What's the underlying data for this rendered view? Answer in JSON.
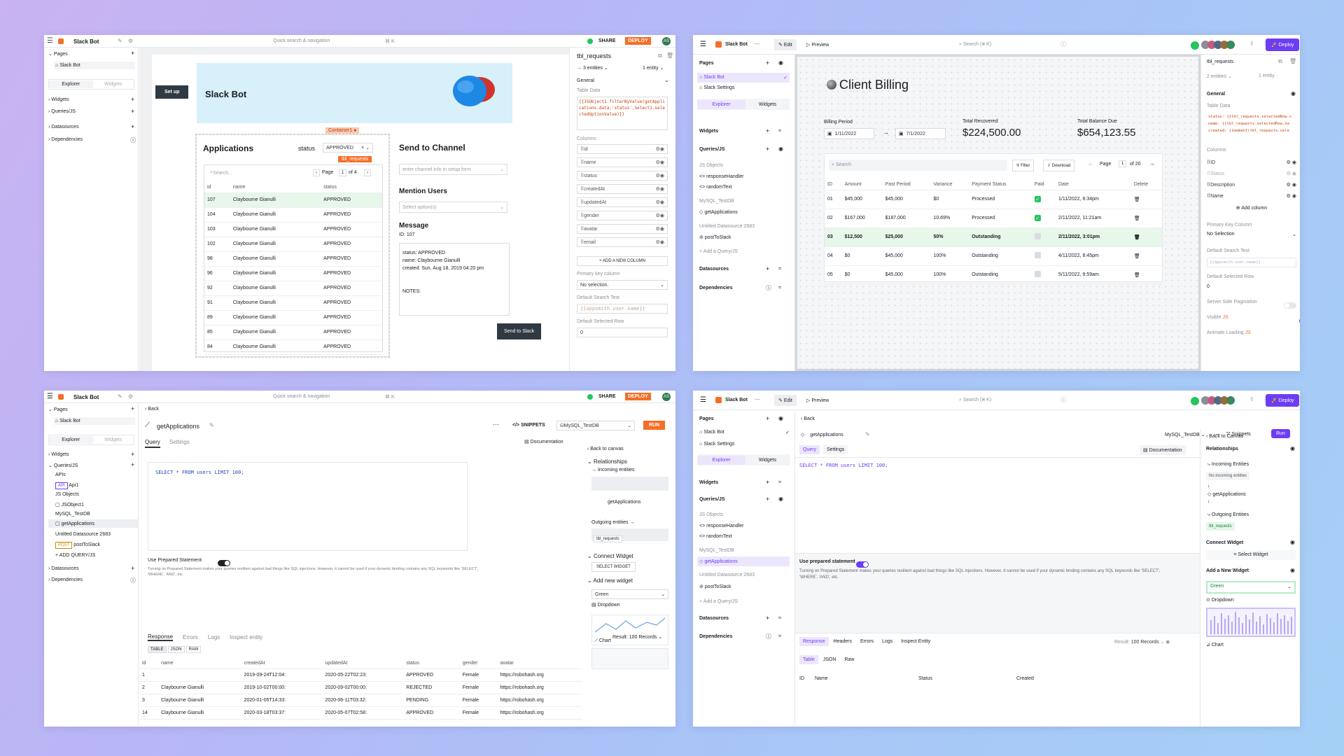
{
  "p1": {
    "app_name": "Slack Bot",
    "search_placeholder": "Quick search & navigation",
    "search_kbd": "⌘ K",
    "share": "SHARE",
    "deploy": "DEPLOY",
    "avatar": "AS",
    "side": {
      "pages": "Pages",
      "page_item": "Slack Bot",
      "tab_explorer": "Explorer",
      "tab_widgets": "Widgets",
      "widgets": "Widgets",
      "queries": "Queries/JS",
      "datasources": "Datasources",
      "dependencies": "Dependencies"
    },
    "canvas": {
      "setup_btn": "Set up",
      "hero_title": "Slack Bot",
      "container_tag": "Container1",
      "table_tag": "tbl_requests",
      "apps_title": "Applications",
      "status_label": "status",
      "status_value": "APPROVED",
      "search_placeholder": "Search...",
      "page_label": "Page",
      "page_num": "1",
      "page_of": "of 4",
      "cols": [
        "id",
        "name",
        "status"
      ],
      "rows": [
        [
          "107",
          "Claybourne Gianulli",
          "APPROVED"
        ],
        [
          "104",
          "Claybourne Gianulli",
          "APPROVED"
        ],
        [
          "103",
          "Claybourne Gianulli",
          "APPROVED"
        ],
        [
          "102",
          "Claybourne Gianulli",
          "APPROVED"
        ],
        [
          "98",
          "Claybourne Gianulli",
          "APPROVED"
        ],
        [
          "96",
          "Claybourne Gianulli",
          "APPROVED"
        ],
        [
          "92",
          "Claybourne Gianulli",
          "APPROVED"
        ],
        [
          "91",
          "Claybourne Gianulli",
          "APPROVED"
        ],
        [
          "89",
          "Claybourne Gianulli",
          "APPROVED"
        ],
        [
          "85",
          "Claybourne Gianulli",
          "APPROVED"
        ],
        [
          "84",
          "Claybourne Gianulli",
          "APPROVED"
        ]
      ],
      "send_title": "Send to Channel",
      "channel_placeholder": "enter channel info in setup form",
      "mention_title": "Mention Users",
      "mention_placeholder": "Select option(s)",
      "message_title": "Message",
      "message_id": "ID: 107",
      "msg_l1": "status: APPROVED",
      "msg_l2": "name: Claybourne Gianulli",
      "msg_l3": "created: Sun, Aug 18, 2019 04:20 pm",
      "msg_l4": "NOTES:",
      "send_btn": "Send to Slack"
    },
    "props": {
      "title": "tbl_requests",
      "entities": "→ 3 entities ⌄",
      "entity": "1 entity ⌄",
      "general": "General",
      "table_data": "Table Data",
      "code": "{{JSObject1.filterByValue(getApplications.data,'status',Select1.selectedOptionValue)}}",
      "columns": "Columns",
      "cols": [
        "id",
        "name",
        "status",
        "createdAt",
        "updatedAt",
        "gender",
        "avatar",
        "email"
      ],
      "add_col": "+ ADD A NEW COLUMN",
      "pk": "Primary key column",
      "pk_val": "No selection.",
      "dst": "Default Search Text",
      "dst_val": "{{appsmith.user.name}}",
      "dsr": "Default Selected Row",
      "dsr_val": "0"
    }
  },
  "p2": {
    "app_name": "Slack Bot",
    "edit": "Edit",
    "preview": "Preview",
    "search": "Search (⌘ K)",
    "deploy": "Deploy",
    "side": {
      "pages": "Pages",
      "page1": "Slack Bot",
      "page2": "Slack Settings",
      "tab_explorer": "Explorer",
      "tab_widgets": "Widgets",
      "widgets": "Widgets",
      "queries": "Queries/JS",
      "js_objects": "JS Objects",
      "js1": "responseHandler",
      "js2": "randomText",
      "db1": "MySQL_TestDB",
      "q1": "getApplications",
      "db2": "Untitled Datasource 2683",
      "q2": "postToSlack",
      "add_q": "Add a Query/JS",
      "datasources": "Datasources",
      "dependencies": "Dependencies"
    },
    "billing": {
      "title": "Client Billing",
      "period_label": "Billing Period",
      "date_from": "1/11/2022",
      "date_to": "7/1/2022",
      "recovered_label": "Total Recovered",
      "recovered": "$224,500.00",
      "due_label": "Total Balance Due",
      "due": "$654,123.55",
      "search": "Search",
      "filter": "Filter",
      "download": "Download",
      "page": "Page",
      "page_num": "1",
      "page_of": "of 20",
      "cols": [
        "ID",
        "Amount",
        "Past Period",
        "Variance",
        "Payment Status",
        "Paid",
        "Date",
        "Delete"
      ],
      "rows": [
        [
          "01",
          "$45,000",
          "$45,000",
          "$0",
          "Processed",
          "yes",
          "1/11/2022, 6:34pm"
        ],
        [
          "02",
          "$167,000",
          "$187,000",
          "10.69%",
          "Processed",
          "yes",
          "2/11/2022, 11:21am"
        ],
        [
          "03",
          "$12,500",
          "$25,000",
          "50%",
          "Outstanding",
          "no",
          "2/11/2022, 3:01pm"
        ],
        [
          "04",
          "$0",
          "$45,000",
          "100%",
          "Outstanding",
          "no",
          "4/11/2022, 8:45pm"
        ],
        [
          "05",
          "$0",
          "$45,000",
          "100%",
          "Outstanding",
          "no",
          "5/11/2022, 9:59am"
        ]
      ]
    },
    "props": {
      "title": "tbl_requests",
      "entities": "2 entities ⌄",
      "entity": "1 entity",
      "general": "General",
      "table_data": "Table Data",
      "code1": "status: {{tbl_requests.selectedRow.s",
      "code2": "name: {{tbl_requests.selectedRow.na",
      "code3": "created: {{moment(tbl_requests.sele",
      "columns": "Columns",
      "cols": [
        "ID",
        "Status",
        "Description",
        "Name"
      ],
      "add_col": "Add column",
      "pk": "Primary Key Column",
      "pk_val": "No Selection",
      "dst": "Default Search Text",
      "dst_val": "{{appsmith.user.name}}",
      "dsr": "Default Selected Row",
      "dsr_val": "0",
      "ssp": "Server Side Pagination",
      "visible": "Visible",
      "js": "JS",
      "animate": "Animate Loading"
    }
  },
  "p3": {
    "app_name": "Slack Bot",
    "search_placeholder": "Quick search & navigation",
    "search_kbd": "⌘ K",
    "share": "SHARE",
    "deploy": "DEPLOY",
    "avatar": "AS",
    "side": {
      "pages": "Pages",
      "page_item": "Slack Bot",
      "tab_explorer": "Explorer",
      "tab_widgets": "Widgets",
      "widgets": "Widgets",
      "queries": "Queries/JS",
      "apis": "APIs",
      "api1_tag": "API",
      "api1": "Api1",
      "js_objects": "JS Objects",
      "js1": "JSObject1",
      "db1": "MySQL_TestDB",
      "q1": "getApplications",
      "db2": "Untitled Datasource 2683",
      "q2_tag": "POST",
      "q2": "postToSlack",
      "add_q": "+ ADD QUERY/JS",
      "datasources": "Datasources",
      "dependencies": "Dependencies"
    },
    "editor": {
      "back": "Back",
      "query_name": "getApplications",
      "snippets": "SNIPPETS",
      "datasource": "MySQL_TestDB",
      "run": "RUN",
      "tab_query": "Query",
      "tab_settings": "Settings",
      "documentation": "Documentation",
      "sql": "SELECT * FROM users LIMIT 100;",
      "prepared": "Use Prepared Statement",
      "prepared_desc": "Turning on Prepared Statement makes your queries resilient against bad things like SQL injections. However, it cannot be used if your dynamic binding contains any SQL keywords like 'SELECT', 'WHERE', 'AND', etc.",
      "res_tabs": [
        "Response",
        "Errors",
        "Logs",
        "Inspect entity"
      ],
      "result": "Result: 100 Records",
      "fmt": [
        "TABLE",
        "JSON",
        "RAW"
      ],
      "cols": [
        "id",
        "name",
        "createdAt",
        "updatedAt",
        "status",
        "gender",
        "avatar"
      ],
      "rows": [
        [
          "1",
          "",
          "2019-09-24T12:04:",
          "2020-05-22T02:23:",
          "APPROVED",
          "Female",
          "https://robohash.org"
        ],
        [
          "2",
          "Claybourne Gianulli",
          "2019-10-02T00:00:",
          "2020-09-02T00:00:",
          "REJECTED",
          "Female",
          "https://robohash.org"
        ],
        [
          "3",
          "Claybourne Gianulli",
          "2020-01-05T14:33:",
          "2020-06-11T03:32:",
          "PENDING",
          "Female",
          "https://robohash.org"
        ],
        [
          "14",
          "Claybourne Gianulli",
          "2020-03-18T03:37:",
          "2020-05-07T02:58:",
          "APPROVED",
          "Female",
          "https://robohash.org"
        ]
      ]
    },
    "right": {
      "back": "Back to canvas",
      "relationships": "Relationships",
      "incoming": "→ Incoming entities",
      "center": "getApplications",
      "outgoing": "Outgoing entities →",
      "out_chip": "tbl_requests",
      "connect": "Connect Widget",
      "select_widget": "SELECT WIDGET",
      "add_new": "Add new widget",
      "select_val": "Green",
      "dropdown": "Dropdown",
      "chart": "Chart"
    }
  },
  "p4": {
    "app_name": "Slack Bot",
    "edit": "Edit",
    "preview": "Preview",
    "search": "Search (⌘ K)",
    "deploy": "Deploy",
    "side": {
      "pages": "Pages",
      "page1": "Slack Bot",
      "page2": "Slack Settings",
      "tab_explorer": "Explorer",
      "tab_widgets": "Widgets",
      "widgets": "Widgets",
      "queries": "Queries/JS",
      "js_objects": "JS Objects",
      "js1": "responseHandler",
      "js2": "randomText",
      "db1": "MySQL_TestDB",
      "q1": "getApplications",
      "db2": "Untitled Datasource 2683",
      "q2": "postToSlack",
      "add_q": "Add a Query/JS",
      "datasources": "Datasources",
      "dependencies": "Dependencies"
    },
    "editor": {
      "back": "Back",
      "query_name": "getApplications",
      "datasource": "MySQL_TestDB",
      "snippets": "Snippets",
      "run": "Run",
      "tab_query": "Query",
      "tab_settings": "Settings",
      "documentation": "Documentation",
      "sql": "SELECT * FROM users LIMIT 100;",
      "prepared": "Use prepared statement",
      "prepared_desc": "Turning on Prepared Statement makes your queries resilient against bad things like SQL injections. However, it cannot be used if your dynamic binding contains any SQL keywords like 'SELECT', 'WHERE', 'AND', etc.",
      "res_tabs": [
        "Response",
        "Headers",
        "Errors",
        "Logs",
        "Inspect Entity"
      ],
      "result": "Result:",
      "result_val": "100 Records",
      "fmt": [
        "Table",
        "JSON",
        "Raw"
      ],
      "cols": [
        "ID",
        "Name",
        "Status",
        "Created"
      ]
    },
    "right": {
      "back": "Back to Canvas",
      "relationships": "Relationships",
      "incoming": "Incoming Entities",
      "no_incoming": "No incoming entities",
      "center": "getApplications",
      "outgoing": "Outgoing Entities",
      "out_chip": "tbl_requests",
      "connect": "Connect Widget",
      "select_widget": "Select Widget",
      "add_new": "Add a New Widget",
      "select_val": "Green",
      "dropdown": "Dropdown",
      "chart": "Chart"
    }
  }
}
